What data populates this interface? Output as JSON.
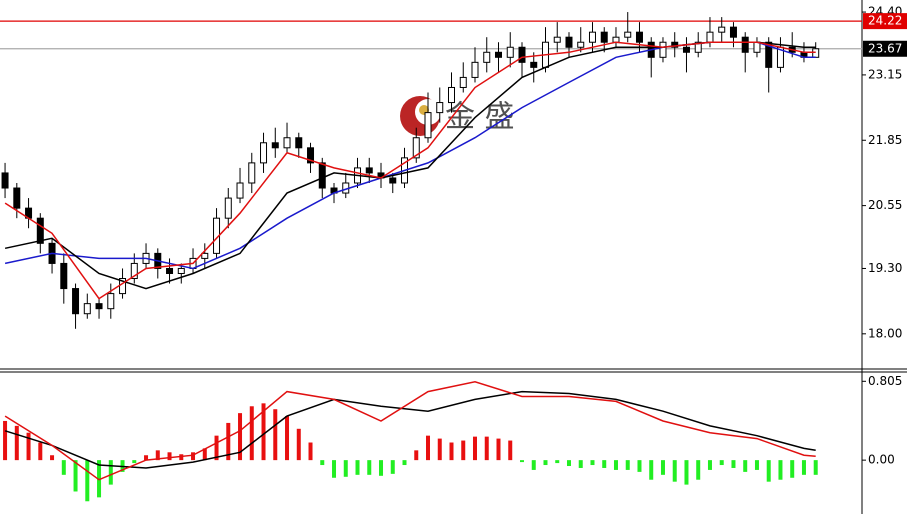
{
  "chart_data": [
    {
      "type": "candlestick",
      "watermark": "金 盛",
      "xlim": [
        -0.43,
        72.94
      ],
      "ylim": [
        17.32,
        24.64
      ],
      "yticks": [
        {
          "value": 24.4,
          "label": "24.40"
        },
        23.15,
        21.85,
        20.55,
        {
          "value": 19.3,
          "label": "19.30"
        },
        {
          "value": 18,
          "label": "18.00"
        }
      ],
      "up_color": "#ffffff",
      "down_color": "#000000",
      "outline_color": "#000000",
      "open": [
        21.2,
        20.9,
        20.5,
        20.3,
        19.8,
        19.4,
        18.9,
        18.4,
        18.6,
        18.5,
        18.8,
        19.1,
        19.4,
        19.6,
        19.3,
        19.2,
        19.3,
        19.5,
        19.6,
        20.3,
        20.7,
        21.0,
        21.4,
        21.8,
        21.7,
        21.9,
        21.7,
        21.4,
        20.9,
        20.8,
        21.0,
        21.3,
        21.2,
        21.1,
        21.0,
        21.5,
        21.9,
        22.4,
        22.6,
        22.9,
        23.1,
        23.4,
        23.6,
        23.5,
        23.7,
        23.4,
        23.3,
        23.8,
        23.9,
        23.7,
        23.8,
        24.0,
        23.8,
        23.9,
        24.0,
        23.8,
        23.5,
        23.8,
        23.7,
        23.6,
        23.8,
        24.0,
        24.1,
        23.9,
        23.6,
        23.8,
        23.3,
        23.7,
        23.6,
        23.5
      ],
      "high": [
        21.4,
        21.0,
        20.7,
        20.4,
        19.9,
        19.6,
        19.0,
        18.8,
        18.7,
        19.0,
        19.3,
        19.6,
        19.8,
        19.7,
        19.5,
        19.4,
        19.7,
        19.8,
        20.5,
        20.9,
        21.3,
        21.6,
        22.0,
        22.1,
        22.2,
        22.0,
        21.8,
        21.5,
        21.0,
        21.2,
        21.5,
        21.5,
        21.4,
        21.2,
        21.7,
        22.1,
        22.8,
        22.9,
        23.2,
        23.4,
        23.7,
        23.9,
        23.8,
        24.0,
        23.8,
        23.6,
        24.1,
        24.2,
        24.0,
        24.1,
        24.2,
        24.1,
        24.1,
        24.4,
        24.2,
        23.9,
        23.9,
        24.0,
        23.9,
        24.0,
        24.3,
        24.3,
        24.2,
        24.0,
        23.9,
        23.9,
        23.9,
        24.0,
        23.8,
        23.8
      ],
      "low": [
        20.7,
        20.3,
        20.1,
        19.6,
        19.2,
        18.6,
        18.1,
        18.3,
        18.3,
        18.3,
        18.7,
        19.0,
        19.3,
        19.1,
        19.0,
        19.0,
        19.2,
        19.3,
        19.5,
        20.1,
        20.6,
        20.8,
        21.2,
        21.5,
        21.6,
        21.5,
        21.2,
        20.7,
        20.6,
        20.7,
        20.9,
        21.0,
        20.9,
        20.8,
        20.9,
        21.4,
        21.8,
        22.2,
        22.4,
        22.8,
        23.0,
        23.2,
        23.2,
        23.3,
        23.1,
        23.0,
        23.2,
        23.6,
        23.5,
        23.6,
        23.6,
        23.6,
        23.7,
        23.8,
        23.6,
        23.1,
        23.4,
        23.5,
        23.2,
        23.5,
        23.7,
        23.8,
        23.7,
        23.2,
        23.5,
        22.8,
        23.2,
        23.5,
        23.4,
        23.5
      ],
      "close": [
        20.9,
        20.5,
        20.3,
        19.8,
        19.4,
        18.9,
        18.4,
        18.6,
        18.5,
        18.8,
        19.1,
        19.4,
        19.6,
        19.3,
        19.2,
        19.3,
        19.5,
        19.6,
        20.3,
        20.7,
        21.0,
        21.4,
        21.8,
        21.7,
        21.9,
        21.7,
        21.4,
        20.9,
        20.8,
        21.0,
        21.3,
        21.2,
        21.1,
        21.0,
        21.5,
        21.9,
        22.4,
        22.6,
        22.9,
        23.1,
        23.4,
        23.6,
        23.5,
        23.7,
        23.4,
        23.3,
        23.8,
        23.9,
        23.7,
        23.8,
        24.0,
        23.8,
        23.9,
        24.0,
        23.8,
        23.5,
        23.8,
        23.7,
        23.6,
        23.8,
        24.0,
        24.1,
        23.9,
        23.6,
        23.8,
        23.3,
        23.7,
        23.6,
        23.5,
        23.67
      ],
      "series": [
        {
          "color": "#1a1acc",
          "x": [
            0,
            4,
            8,
            12,
            16,
            20,
            24,
            28,
            32,
            36,
            40,
            44,
            48,
            52,
            56,
            60,
            64,
            68,
            69
          ],
          "values": [
            19.4,
            19.6,
            19.5,
            19.5,
            19.3,
            19.7,
            20.3,
            20.8,
            21.1,
            21.4,
            21.9,
            22.5,
            23.0,
            23.5,
            23.7,
            23.8,
            23.8,
            23.5,
            23.5
          ]
        },
        {
          "color": "#000000",
          "x": [
            0,
            4,
            8,
            12,
            16,
            20,
            24,
            28,
            32,
            36,
            40,
            44,
            48,
            52,
            56,
            60,
            64,
            68,
            69
          ],
          "values": [
            19.7,
            19.9,
            19.2,
            18.9,
            19.2,
            19.6,
            20.8,
            21.2,
            21.1,
            21.3,
            22.3,
            23.1,
            23.5,
            23.7,
            23.7,
            23.8,
            23.8,
            23.7,
            23.7
          ]
        },
        {
          "color": "#e01010",
          "x": [
            0,
            4,
            8,
            12,
            16,
            20,
            24,
            28,
            32,
            36,
            40,
            44,
            48,
            52,
            56,
            60,
            64,
            68,
            69
          ],
          "values": [
            20.6,
            20.0,
            18.7,
            19.3,
            19.4,
            20.4,
            21.6,
            21.3,
            21.1,
            21.7,
            22.9,
            23.5,
            23.6,
            23.8,
            23.7,
            23.8,
            23.8,
            23.6,
            23.6
          ]
        }
      ],
      "hlines": [
        {
          "value": 24.22,
          "color": "#e00000"
        },
        {
          "value": 23.67,
          "color": "#000000"
        }
      ]
    },
    {
      "type": "macd",
      "xlim": [
        -0.43,
        72.94
      ],
      "ylim": [
        -0.55,
        0.9
      ],
      "yticks": [
        0.805,
        {
          "value": 0,
          "label": "0.00"
        }
      ],
      "pos_color": "#e81010",
      "neg_color": "#22ee22",
      "histogram": [
        0.4,
        0.35,
        0.28,
        0.18,
        0.05,
        -0.15,
        -0.32,
        -0.42,
        -0.38,
        -0.25,
        -0.12,
        -0.03,
        0.05,
        0.1,
        0.08,
        0.06,
        0.08,
        0.12,
        0.25,
        0.38,
        0.48,
        0.55,
        0.58,
        0.52,
        0.45,
        0.32,
        0.18,
        -0.05,
        -0.18,
        -0.17,
        -0.15,
        -0.15,
        -0.16,
        -0.14,
        -0.05,
        0.1,
        0.25,
        0.22,
        0.18,
        0.2,
        0.24,
        0.24,
        0.22,
        0.2,
        -0.02,
        -0.1,
        -0.05,
        -0.03,
        -0.06,
        -0.08,
        -0.05,
        -0.08,
        -0.1,
        -0.1,
        -0.12,
        -0.2,
        -0.15,
        -0.22,
        -0.25,
        -0.2,
        -0.1,
        -0.05,
        -0.08,
        -0.12,
        -0.1,
        -0.22,
        -0.2,
        -0.18,
        -0.15,
        -0.15
      ],
      "series": [
        {
          "color": "#000000",
          "x": [
            0,
            4,
            8,
            12,
            16,
            20,
            24,
            28,
            32,
            36,
            40,
            44,
            48,
            52,
            56,
            60,
            64,
            68,
            69
          ],
          "values": [
            0.3,
            0.15,
            -0.05,
            -0.08,
            -0.02,
            0.08,
            0.45,
            0.62,
            0.55,
            0.5,
            0.62,
            0.7,
            0.68,
            0.62,
            0.5,
            0.35,
            0.25,
            0.12,
            0.1
          ]
        },
        {
          "color": "#e01010",
          "x": [
            0,
            4,
            8,
            12,
            16,
            20,
            24,
            28,
            32,
            36,
            40,
            44,
            48,
            52,
            56,
            60,
            64,
            68,
            69
          ],
          "values": [
            0.45,
            0.15,
            -0.2,
            0.0,
            0.05,
            0.3,
            0.7,
            0.62,
            0.4,
            0.7,
            0.8,
            0.65,
            0.65,
            0.6,
            0.4,
            0.28,
            0.22,
            0.05,
            0.04
          ]
        }
      ]
    }
  ]
}
